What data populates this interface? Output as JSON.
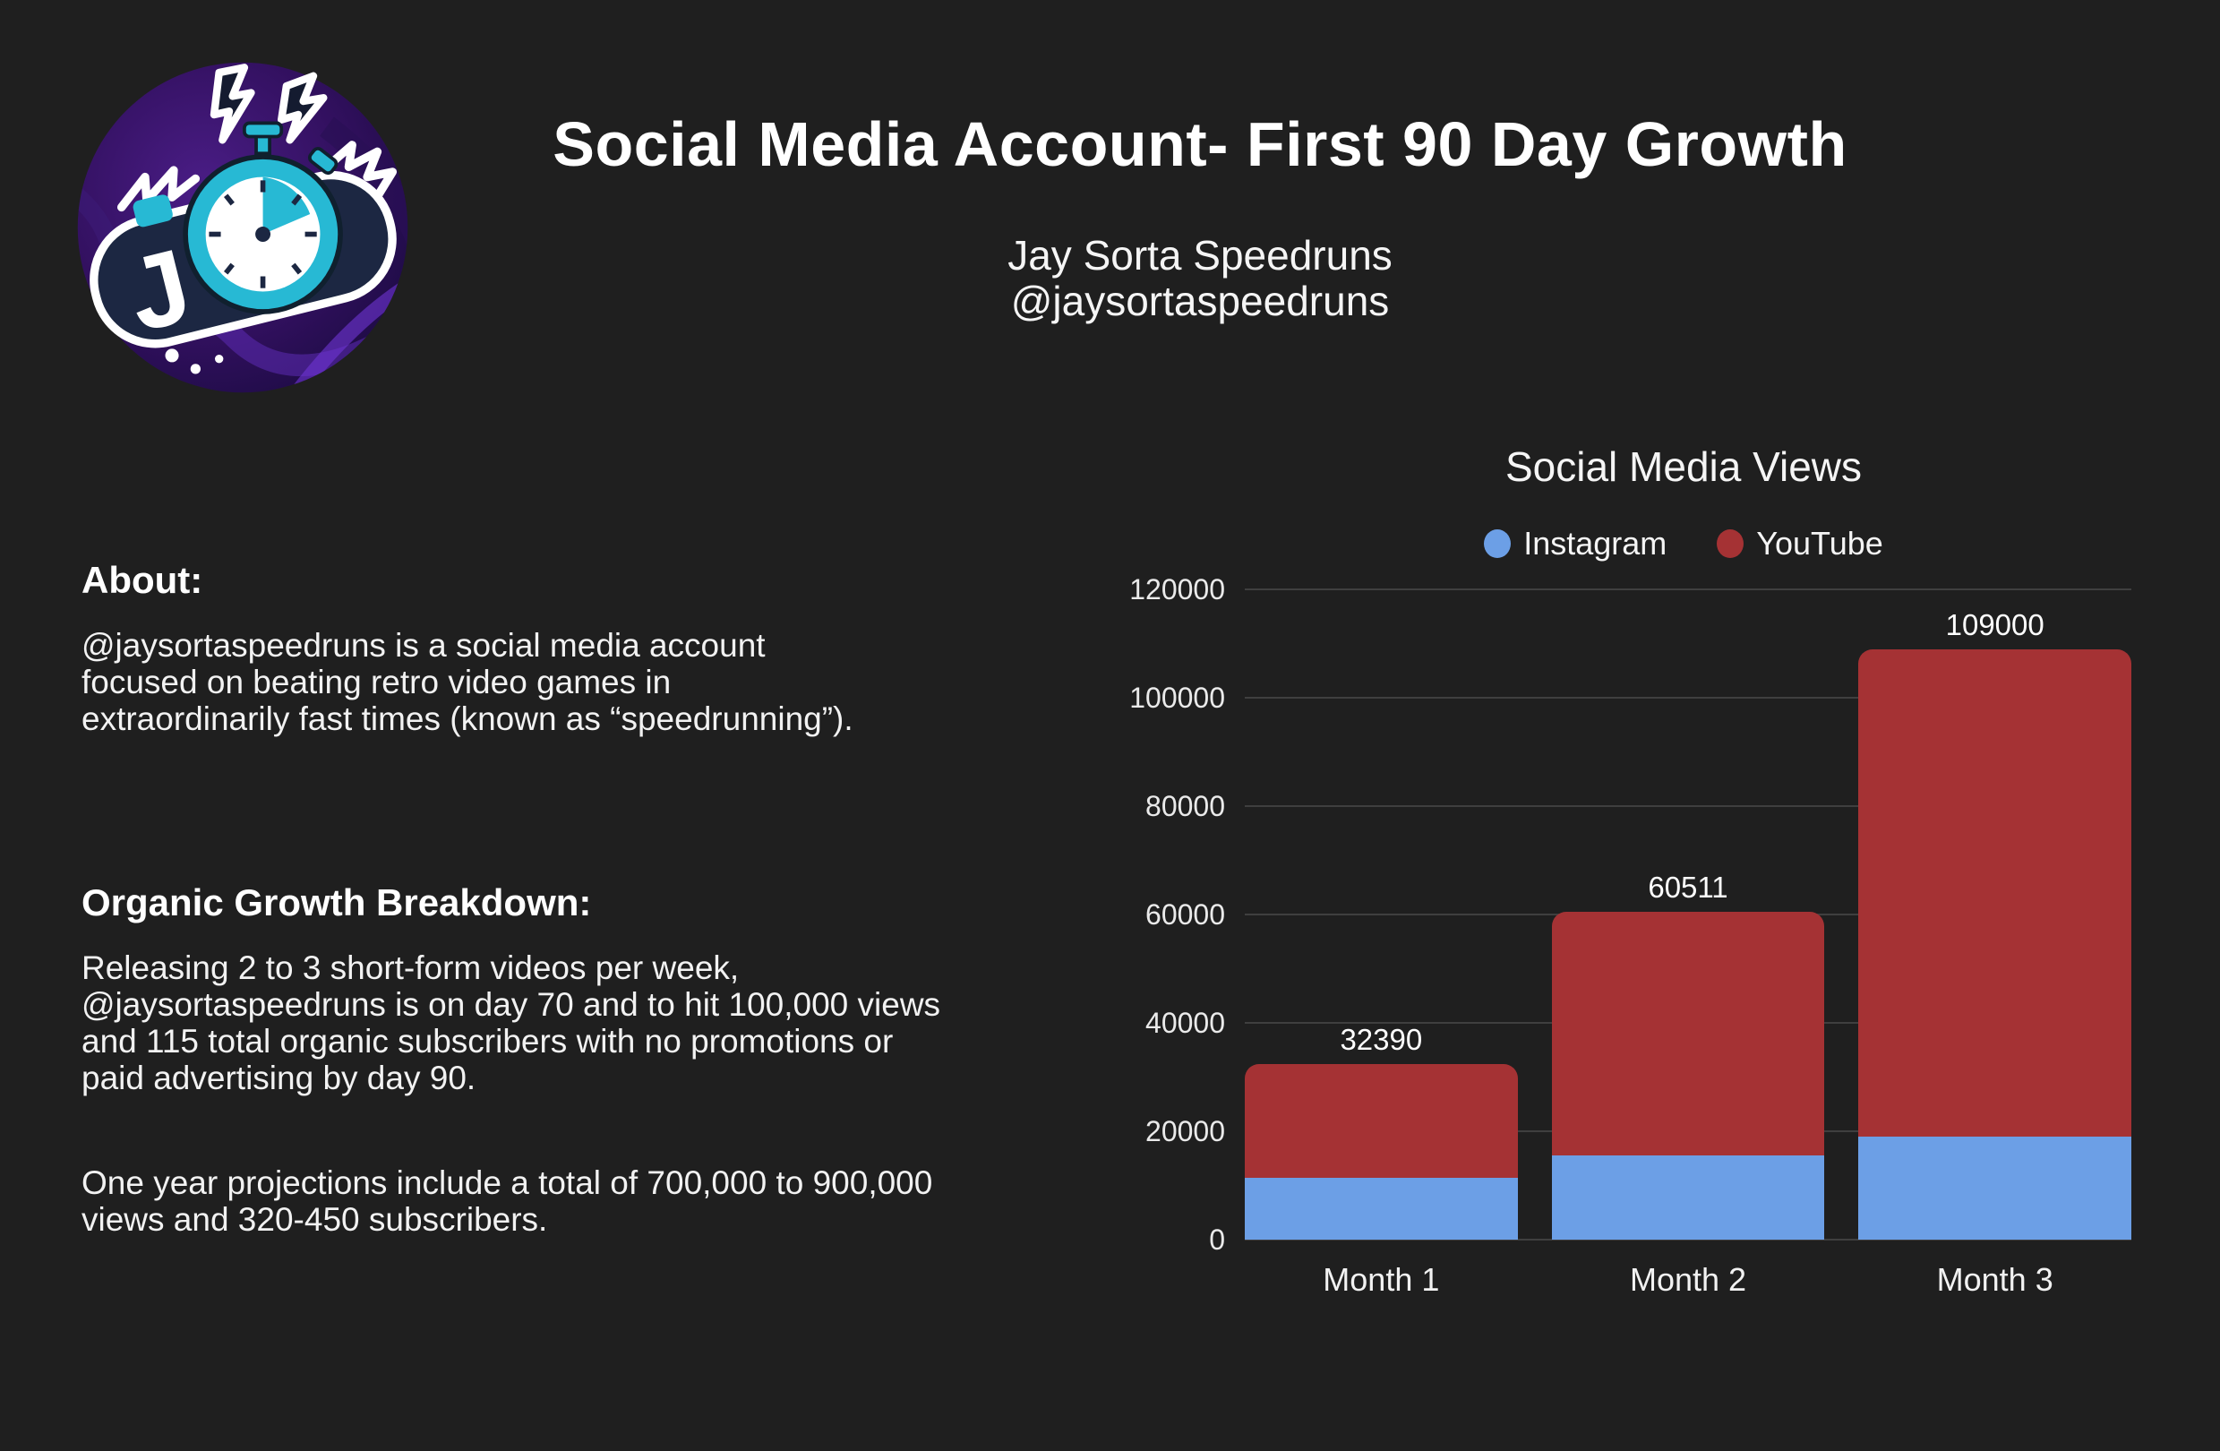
{
  "colors": {
    "background": "#1f1f1f",
    "text": "#f5f5f5",
    "gridline": "#3f3f3f",
    "instagram_blue": "#6c9fe6",
    "youtube_red": "#a53234"
  },
  "header": {
    "title": "Social Media Account- First 90 Day Growth",
    "subtitle_line1": "Jay Sorta Speedruns",
    "subtitle_line2": "@jaysortaspeedruns",
    "logo_icon": "game-controller-stopwatch-logo",
    "logo_letter": "J"
  },
  "about": {
    "heading": "About:",
    "body": "@jaysortaspeedruns is a social media account focused on beating retro video games in extraordinarily fast times (known as “speedrunning”)."
  },
  "growth": {
    "heading": "Organic Growth Breakdown:",
    "paragraph1": "Releasing 2 to 3 short-form videos per week, @jaysortaspeedruns is on day 70 and to hit 100,000 views and 115 total organic subscribers with no promotions or paid advertising by day 90.",
    "paragraph2": "One year projections include a total of 700,000 to 900,000 views and 320-450 subscribers."
  },
  "chart_data": {
    "type": "bar",
    "stacked": true,
    "title": "Social Media Views",
    "categories": [
      "Month 1",
      "Month 2",
      "Month 3"
    ],
    "series": [
      {
        "name": "Instagram",
        "color": "#6c9fe6",
        "values": [
          11390,
          15511,
          19000
        ]
      },
      {
        "name": "YouTube",
        "color": "#a53234",
        "values": [
          21000,
          45000,
          90000
        ]
      }
    ],
    "totals": [
      32390,
      60511,
      109000
    ],
    "total_labels": [
      "32390",
      "60511",
      "109000"
    ],
    "ylabel": "",
    "xlabel": "",
    "ylim": [
      0,
      120000
    ],
    "ytick_step": 20000,
    "yticks": [
      "120000",
      "100000",
      "80000",
      "60000",
      "40000",
      "20000",
      "0"
    ],
    "grid": true,
    "legend_position": "top",
    "bar_corner_radius_px": 16
  }
}
